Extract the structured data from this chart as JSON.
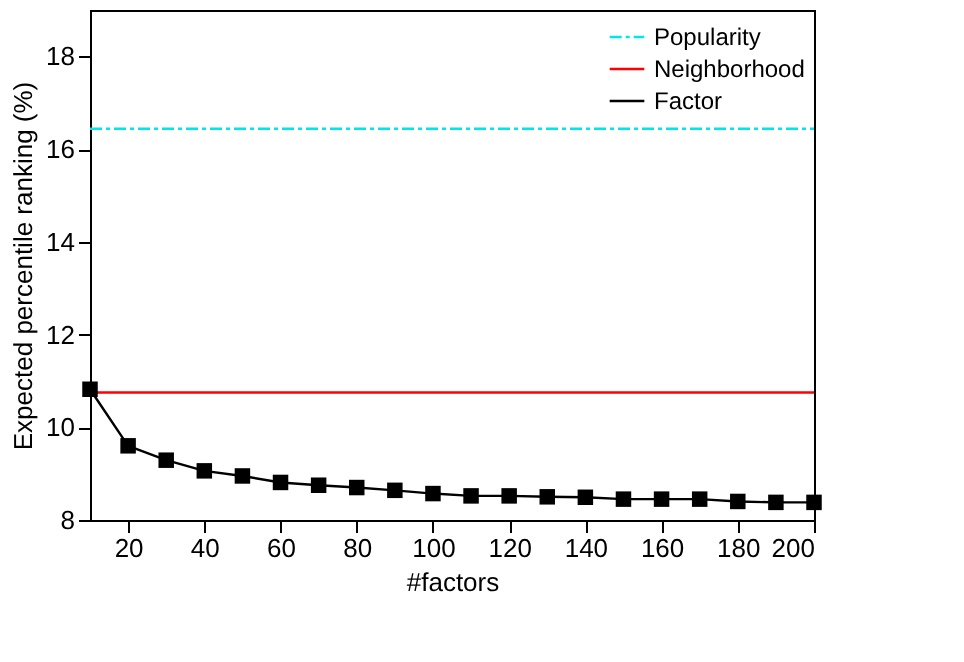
{
  "chart_data": {
    "type": "line",
    "xlabel": "#factors",
    "ylabel": "Expected percentile ranking (%)",
    "xlim": [
      10,
      200
    ],
    "xticks": [
      20,
      40,
      60,
      80,
      100,
      120,
      140,
      160,
      180,
      200
    ],
    "ylim": [
      8,
      19
    ],
    "yticks": [
      8,
      10,
      12,
      14,
      16,
      18
    ],
    "grid": false,
    "legend": "top right",
    "series": [
      {
        "name": "Popularity",
        "color": "#00e5ee",
        "line_style": "dashed",
        "marker": "none",
        "x": [
          10,
          200
        ],
        "values": [
          16.44,
          16.44
        ]
      },
      {
        "name": "Neighborhood",
        "color": "#ff0000",
        "line_style": "solid",
        "marker": "none",
        "x": [
          10,
          200
        ],
        "values": [
          10.75,
          10.75
        ]
      },
      {
        "name": "Factor",
        "color": "#000000",
        "line_style": "solid",
        "marker": "square",
        "x": [
          10,
          20,
          30,
          40,
          50,
          60,
          70,
          80,
          90,
          100,
          110,
          120,
          130,
          140,
          150,
          160,
          170,
          180,
          190,
          200
        ],
        "values": [
          10.82,
          9.6,
          9.29,
          9.06,
          8.95,
          8.81,
          8.75,
          8.7,
          8.64,
          8.57,
          8.52,
          8.52,
          8.5,
          8.49,
          8.45,
          8.45,
          8.45,
          8.4,
          8.38,
          8.38
        ]
      }
    ]
  }
}
